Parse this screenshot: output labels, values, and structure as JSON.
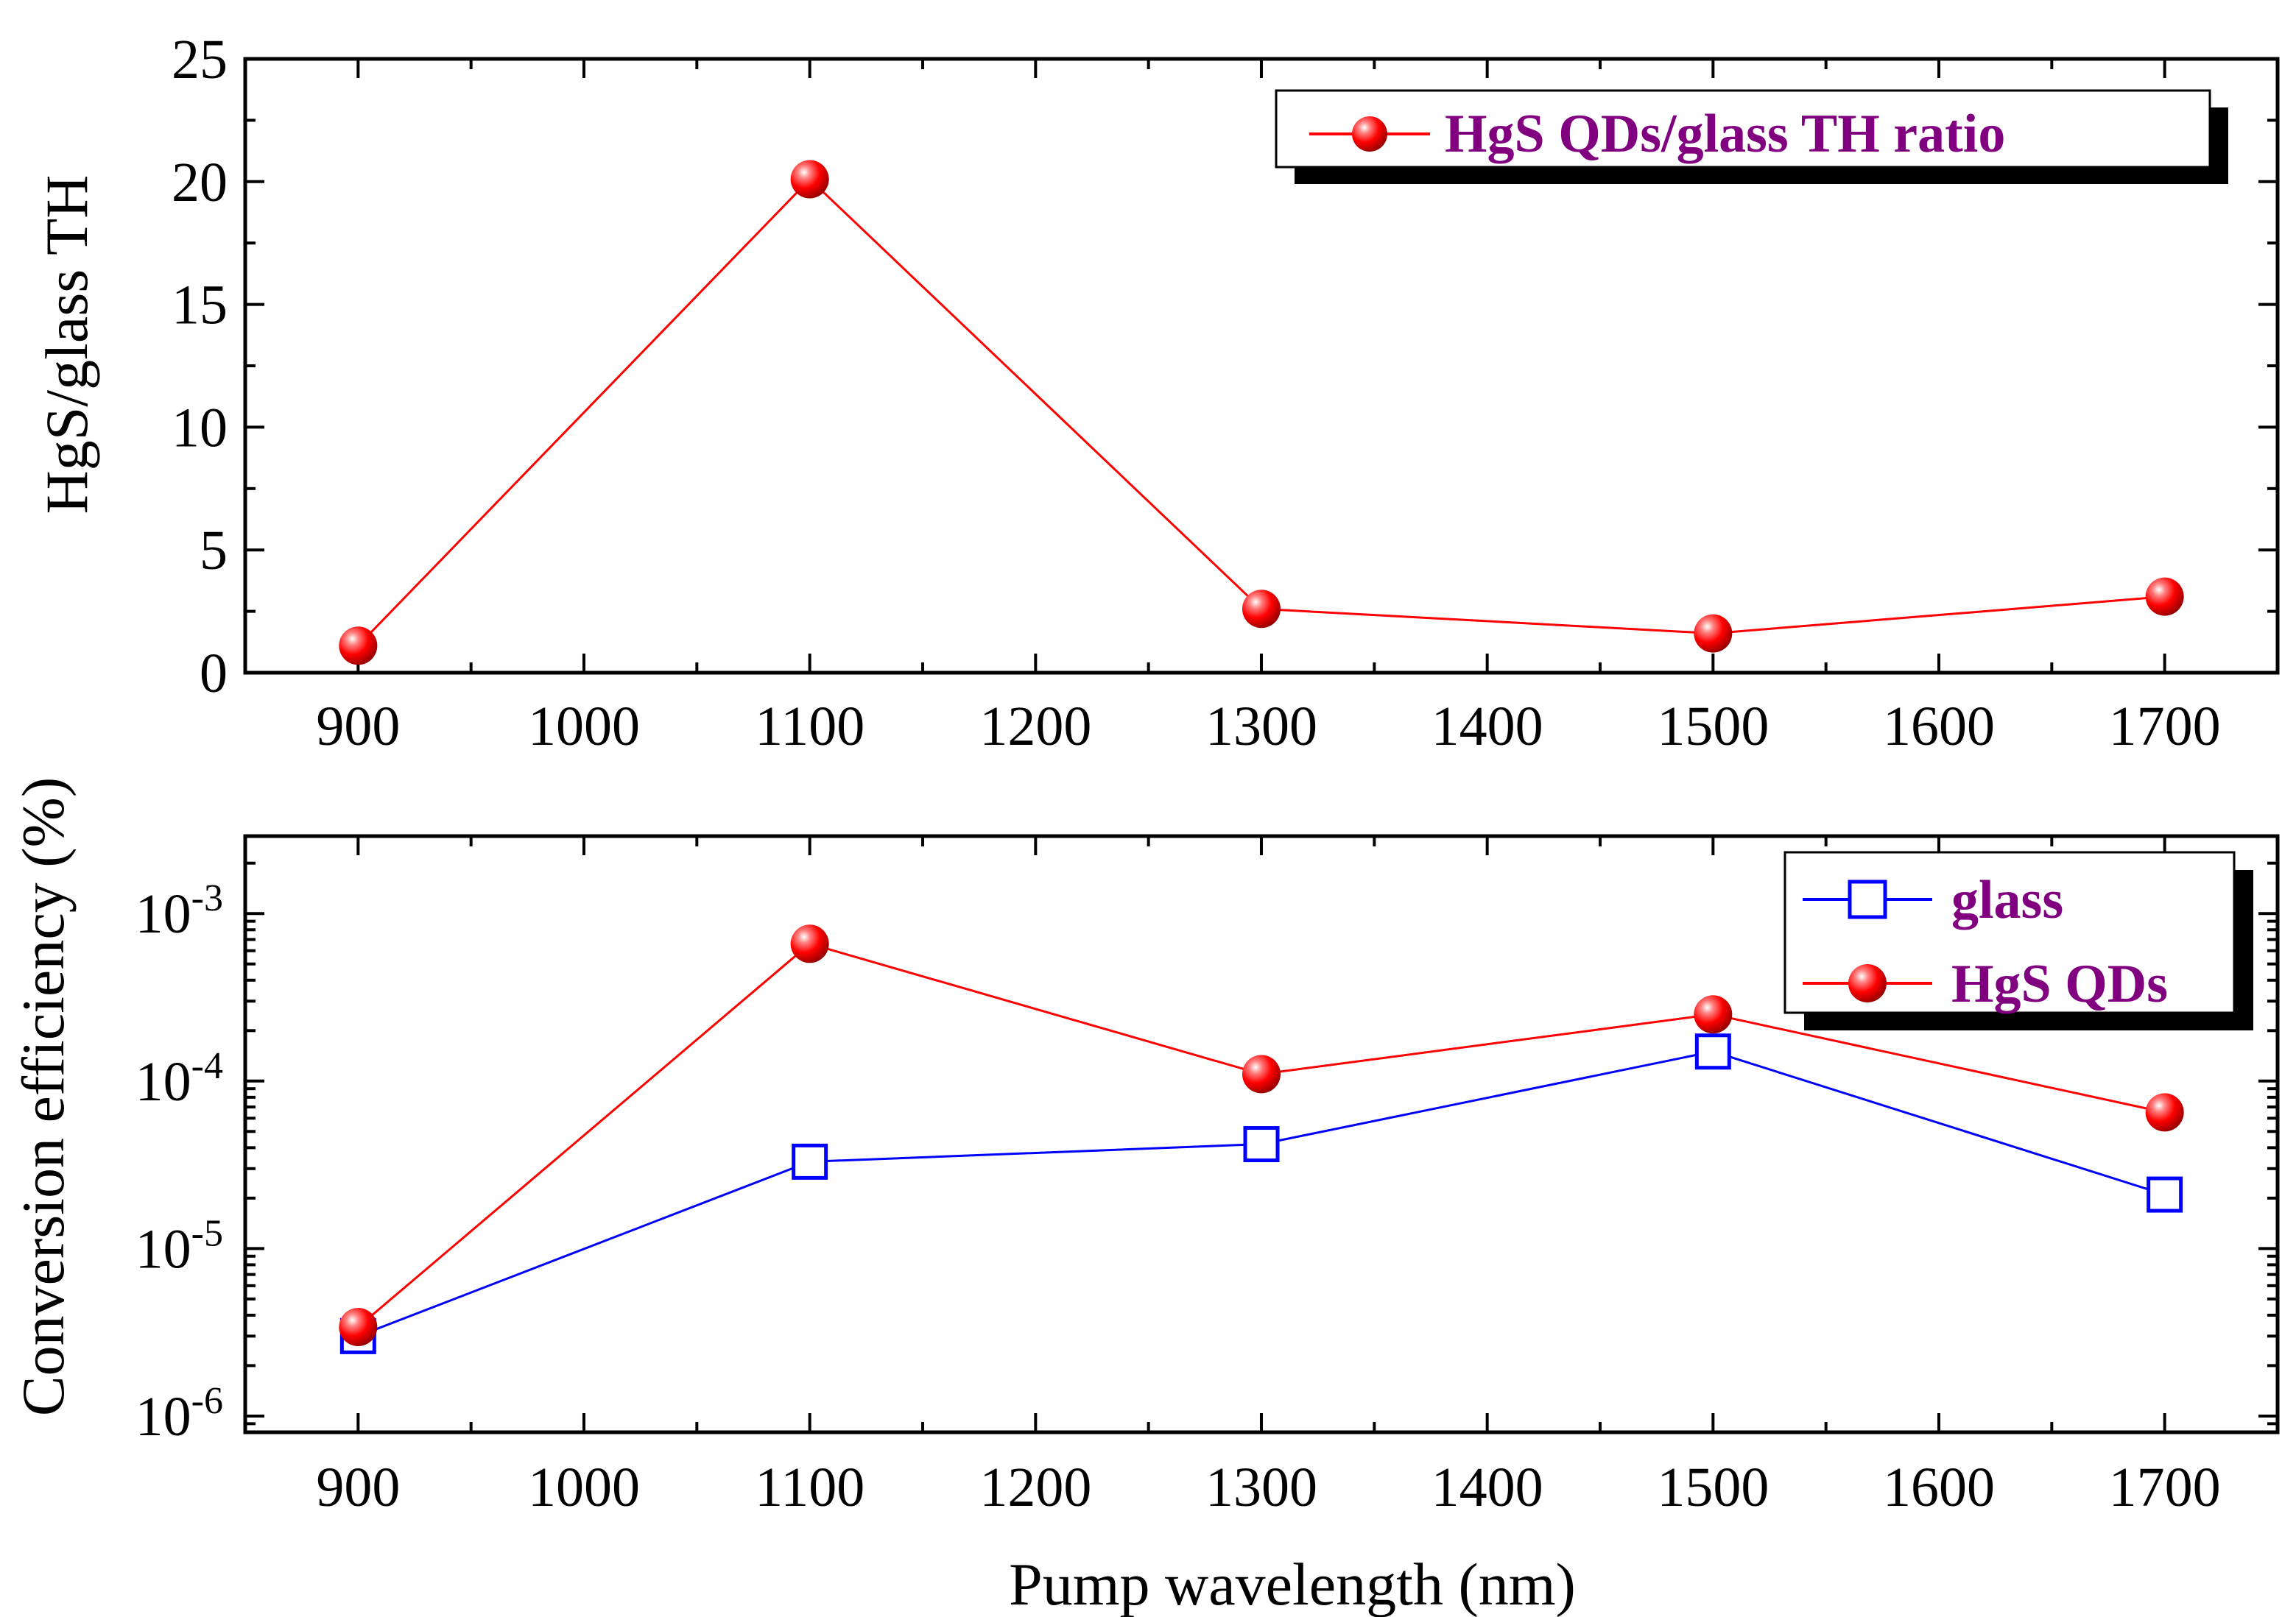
{
  "chart_data": [
    {
      "type": "line",
      "title": "",
      "xlabel": "",
      "ylabel": "HgS/glass TH",
      "x": [
        900,
        1100,
        1300,
        1500,
        1700
      ],
      "xlim": [
        850,
        1750
      ],
      "ylim": [
        0,
        25
      ],
      "xticks": [
        "900",
        "1000",
        "1100",
        "1200",
        "1300",
        "1400",
        "1500",
        "1600",
        "1700"
      ],
      "yticks": [
        "0",
        "5",
        "10",
        "15",
        "20",
        "25"
      ],
      "legend_position": "top-right",
      "series": [
        {
          "name": "HgS QDs/glass TH ratio",
          "color": "#ff0000",
          "marker": "sphere",
          "values": [
            1.1,
            20.1,
            2.6,
            1.6,
            3.1
          ]
        }
      ]
    },
    {
      "type": "line",
      "title": "",
      "xlabel": "Pump wavelength (nm)",
      "ylabel": "Conversion efficiency (%)",
      "yscale": "log",
      "x": [
        900,
        1100,
        1300,
        1500,
        1700
      ],
      "xlim": [
        850,
        1750
      ],
      "ylim": [
        8e-07,
        0.0029
      ],
      "xticks": [
        "900",
        "1000",
        "1100",
        "1200",
        "1300",
        "1400",
        "1500",
        "1600",
        "1700"
      ],
      "yticks": [
        {
          "base": "10",
          "exp": "-6"
        },
        {
          "base": "10",
          "exp": "-5"
        },
        {
          "base": "10",
          "exp": "-4"
        },
        {
          "base": "10",
          "exp": "-3"
        }
      ],
      "legend_position": "top-right",
      "series": [
        {
          "name": "glass",
          "color": "#0000ff",
          "marker": "open-square",
          "values": [
            3e-06,
            3.3e-05,
            4.2e-05,
            0.00015,
            2.1e-05
          ]
        },
        {
          "name": "HgS QDs",
          "color": "#ff0000",
          "marker": "sphere",
          "values": [
            3.4e-06,
            0.00066,
            0.00011,
            0.00025,
            6.5e-05
          ]
        }
      ]
    }
  ]
}
